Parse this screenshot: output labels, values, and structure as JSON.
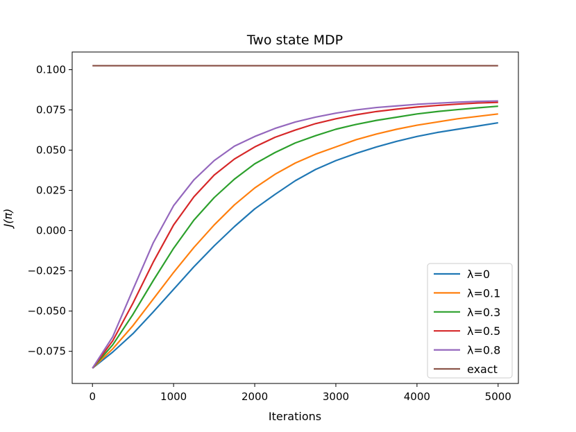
{
  "chart_data": {
    "type": "line",
    "title": "Two state MDP",
    "xlabel": "Iterations",
    "ylabel": "J(π)",
    "xlim": [
      -250,
      5250
    ],
    "ylim": [
      -0.095,
      0.111
    ],
    "xticks": [
      0,
      1000,
      2000,
      3000,
      4000,
      5000
    ],
    "xtick_labels": [
      "0",
      "1000",
      "2000",
      "3000",
      "4000",
      "5000"
    ],
    "yticks": [
      -0.075,
      -0.05,
      -0.025,
      0.0,
      0.025,
      0.05,
      0.075,
      0.1
    ],
    "ytick_labels": [
      "−0.075",
      "−0.050",
      "−0.025",
      "0.000",
      "0.025",
      "0.050",
      "0.075",
      "0.100"
    ],
    "grid": false,
    "legend_position": "lower-right",
    "x": [
      0,
      250,
      500,
      750,
      1000,
      1250,
      1500,
      1750,
      2000,
      2250,
      2500,
      2750,
      3000,
      3250,
      3500,
      3750,
      4000,
      4250,
      4500,
      4750,
      5000
    ],
    "series": [
      {
        "name": "λ=0",
        "color": "#1f77b4",
        "values": [
          -0.0855,
          -0.0755,
          -0.064,
          -0.0505,
          -0.0365,
          -0.0225,
          -0.0095,
          0.0025,
          0.0135,
          0.0225,
          0.031,
          0.038,
          0.0435,
          0.048,
          0.052,
          0.0555,
          0.0585,
          0.061,
          0.063,
          0.065,
          0.067
        ]
      },
      {
        "name": "λ=0.1",
        "color": "#ff7f0e",
        "values": [
          -0.0855,
          -0.0735,
          -0.059,
          -0.0425,
          -0.026,
          -0.0105,
          0.0035,
          0.016,
          0.0265,
          0.035,
          0.042,
          0.0475,
          0.052,
          0.0565,
          0.06,
          0.063,
          0.0655,
          0.0675,
          0.0695,
          0.071,
          0.0725
        ]
      },
      {
        "name": "λ=0.3",
        "color": "#2ca02c",
        "values": [
          -0.0855,
          -0.071,
          -0.052,
          -0.031,
          -0.011,
          0.0065,
          0.0205,
          0.032,
          0.0415,
          0.0485,
          0.0545,
          0.059,
          0.063,
          0.066,
          0.0685,
          0.0705,
          0.0725,
          0.074,
          0.0752,
          0.0763,
          0.0773
        ]
      },
      {
        "name": "λ=0.5",
        "color": "#d62728",
        "values": [
          -0.0855,
          -0.0685,
          -0.045,
          -0.0195,
          0.0035,
          0.021,
          0.0345,
          0.0445,
          0.052,
          0.058,
          0.0625,
          0.0665,
          0.0695,
          0.072,
          0.074,
          0.0755,
          0.0768,
          0.0778,
          0.0786,
          0.0793,
          0.0797
        ]
      },
      {
        "name": "λ=0.8",
        "color": "#9467bd",
        "values": [
          -0.0855,
          -0.066,
          -0.0365,
          -0.0075,
          0.0155,
          0.0315,
          0.0435,
          0.0525,
          0.0585,
          0.0635,
          0.0675,
          0.0705,
          0.073,
          0.075,
          0.0765,
          0.0775,
          0.0785,
          0.0792,
          0.0798,
          0.0803,
          0.0806
        ]
      },
      {
        "name": "exact",
        "color": "#8c564b",
        "values": [
          0.1025,
          0.1025,
          0.1025,
          0.1025,
          0.1025,
          0.1025,
          0.1025,
          0.1025,
          0.1025,
          0.1025,
          0.1025,
          0.1025,
          0.1025,
          0.1025,
          0.1025,
          0.1025,
          0.1025,
          0.1025,
          0.1025,
          0.1025,
          0.1025
        ]
      }
    ]
  }
}
